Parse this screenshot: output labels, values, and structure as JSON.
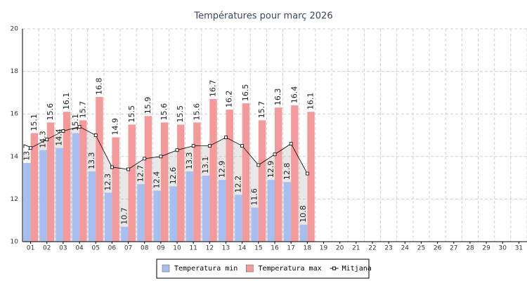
{
  "chart_data": {
    "type": "bar",
    "title": "Températures pour març 2026",
    "categories": [
      "01",
      "02",
      "03",
      "04",
      "05",
      "06",
      "07",
      "08",
      "09",
      "10",
      "11",
      "12",
      "13",
      "14",
      "15",
      "16",
      "17",
      "18",
      "19",
      "20",
      "21",
      "22",
      "23",
      "24",
      "25",
      "26",
      "27",
      "28",
      "29",
      "30",
      "31"
    ],
    "series": [
      {
        "name": "Temperatura min",
        "color": "#a7bff0",
        "values": [
          13.7,
          14.3,
          14.4,
          15.1,
          13.3,
          12.3,
          10.7,
          12.7,
          12.4,
          12.6,
          13.3,
          13.1,
          12.9,
          12.2,
          11.6,
          12.9,
          12.8,
          10.8,
          null,
          null,
          null,
          null,
          null,
          null,
          null,
          null,
          null,
          null,
          null,
          null,
          null
        ]
      },
      {
        "name": "Temperatura max",
        "color": "#f59a9a",
        "values": [
          15.1,
          15.6,
          16.1,
          15.7,
          16.8,
          14.9,
          15.5,
          15.9,
          15.6,
          15.5,
          15.6,
          16.7,
          16.2,
          16.5,
          15.7,
          16.3,
          16.4,
          16.1,
          null,
          null,
          null,
          null,
          null,
          null,
          null,
          null,
          null,
          null,
          null,
          null,
          null
        ]
      },
      {
        "name": "Mitjana",
        "type": "line",
        "color": "#000000",
        "values": [
          14.4,
          14.8,
          15.2,
          15.4,
          15.0,
          13.5,
          13.4,
          13.9,
          14.0,
          14.3,
          14.5,
          14.5,
          14.9,
          14.5,
          13.6,
          14.1,
          14.6,
          13.2,
          null,
          null,
          null,
          null,
          null,
          null,
          null,
          null,
          null,
          null,
          null,
          null,
          null
        ]
      }
    ],
    "ylim": [
      10,
      20
    ],
    "yticks": [
      10,
      12,
      14,
      16,
      18,
      20
    ],
    "grid": true,
    "legend": "bottom"
  }
}
